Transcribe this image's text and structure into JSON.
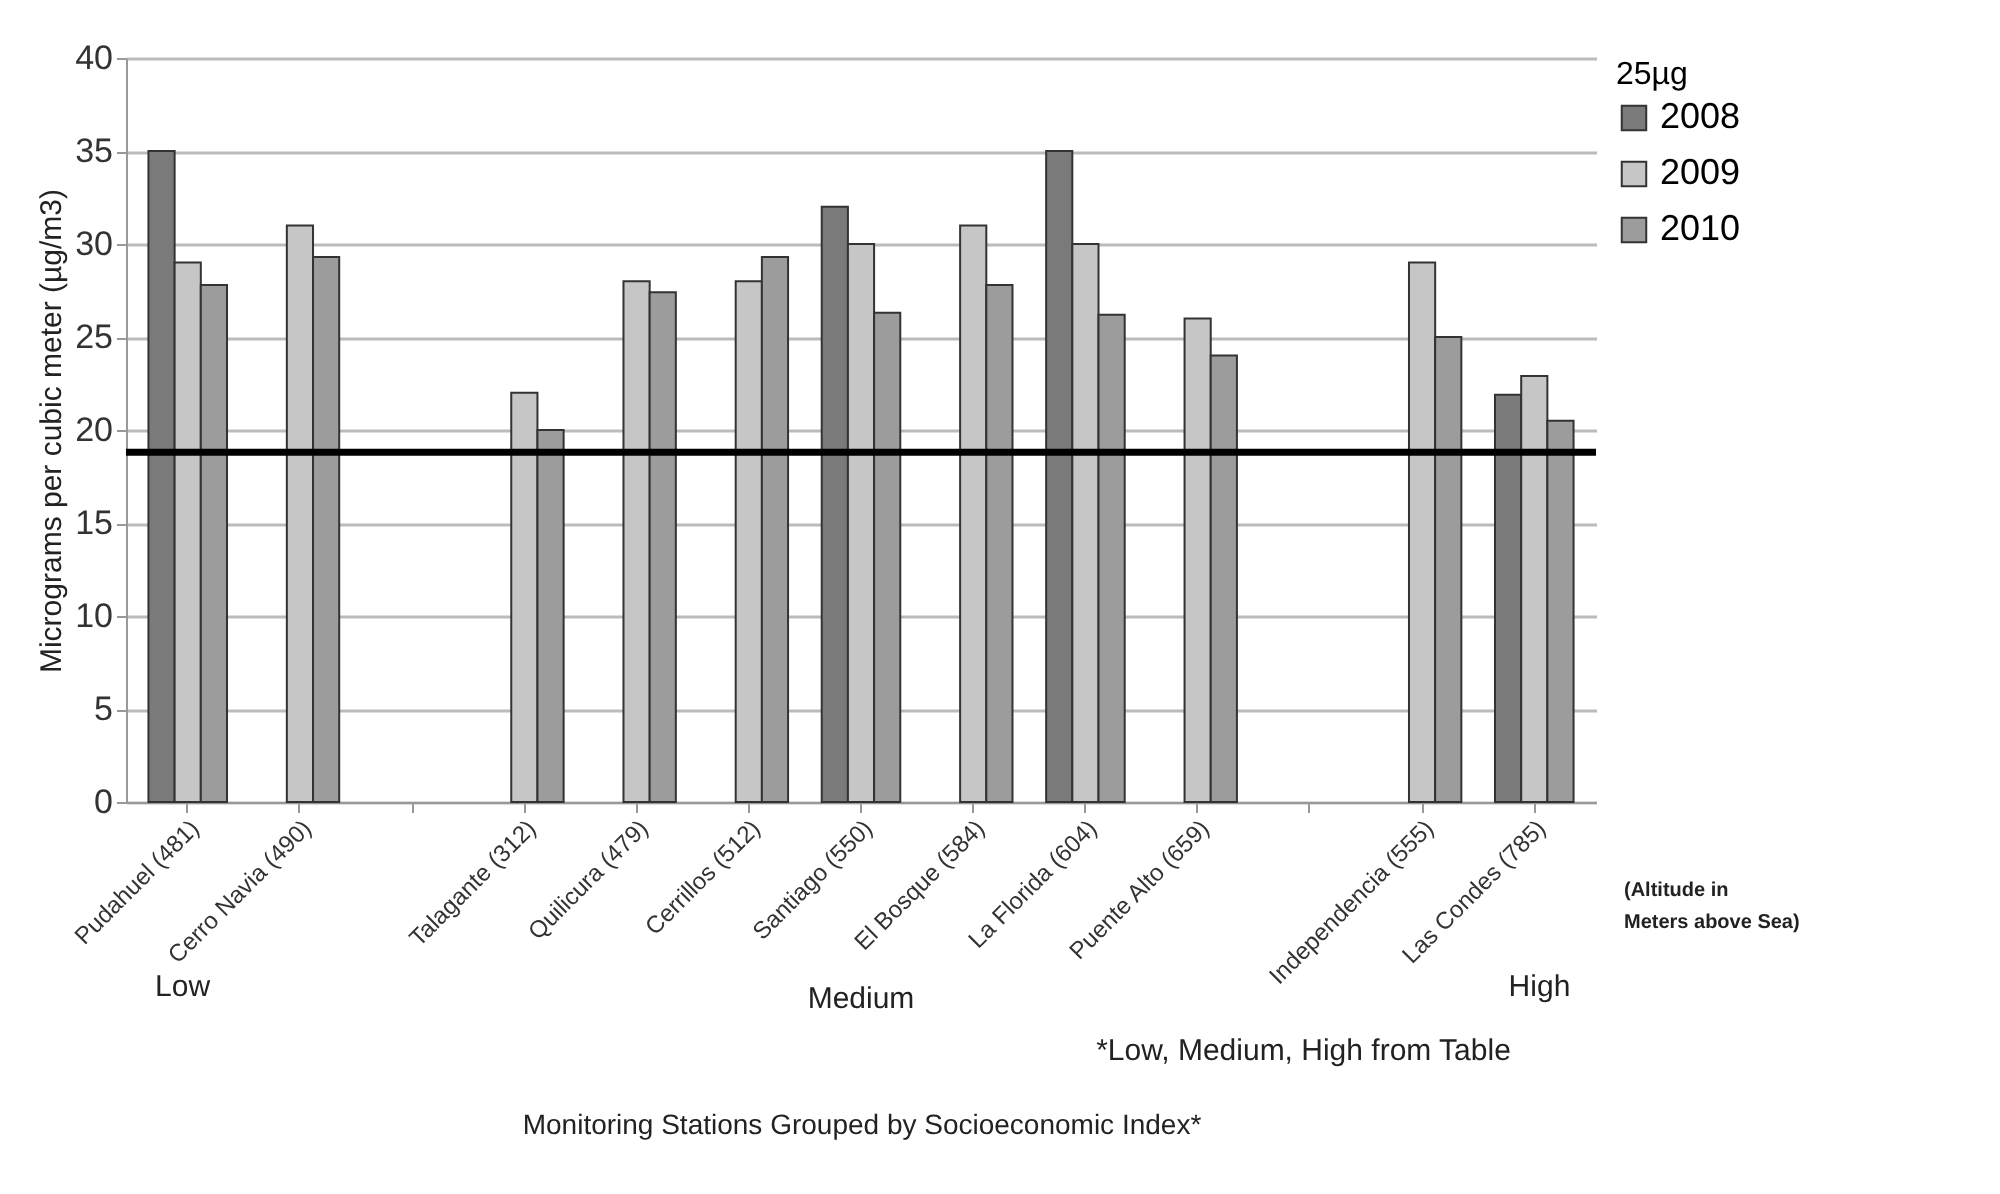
{
  "chart_data": {
    "type": "bar",
    "ylabel": "Micrograms per cubic meter (µg/m3)",
    "xlabel": "Monitoring Stations Grouped by Socioeconomic Index*",
    "legend_title": "25µg",
    "categories": [
      "Pudahuel (481)",
      "Cerro Navia (490)",
      null,
      "Talagante (312)",
      "Quilicura (479)",
      "Cerrillos (512)",
      "Santiago (550)",
      "El Bosque (584)",
      "La Florida (604)",
      "Puente Alto (659)",
      null,
      "Independencia (555)",
      "Las Condes (785)"
    ],
    "series": [
      {
        "name": "2008",
        "color": "#7a7a7a",
        "values": [
          35,
          null,
          null,
          null,
          null,
          null,
          32,
          null,
          35,
          null,
          null,
          null,
          21.9
        ]
      },
      {
        "name": "2009",
        "color": "#c6c6c6",
        "values": [
          29,
          31,
          null,
          22,
          28,
          28,
          30,
          31,
          30,
          26,
          null,
          29,
          22.9
        ]
      },
      {
        "name": "2010",
        "color": "#9c9c9c",
        "values": [
          27.8,
          29.3,
          null,
          20,
          27.4,
          29.3,
          26.3,
          27.8,
          26.2,
          24,
          null,
          25,
          20.5
        ]
      }
    ],
    "ylim": [
      0,
      40
    ],
    "yticks": [
      0,
      5,
      10,
      15,
      20,
      25,
      30,
      35,
      40
    ],
    "grid": "y",
    "legend": "right",
    "ref_lines": [
      {
        "axis": "y",
        "value": 18.8,
        "color": "#000000"
      }
    ],
    "annotations": [
      "Low",
      "Medium",
      "High",
      "*Low, Medium, High from Table",
      "(Altitude in Meters above Sea)"
    ]
  }
}
